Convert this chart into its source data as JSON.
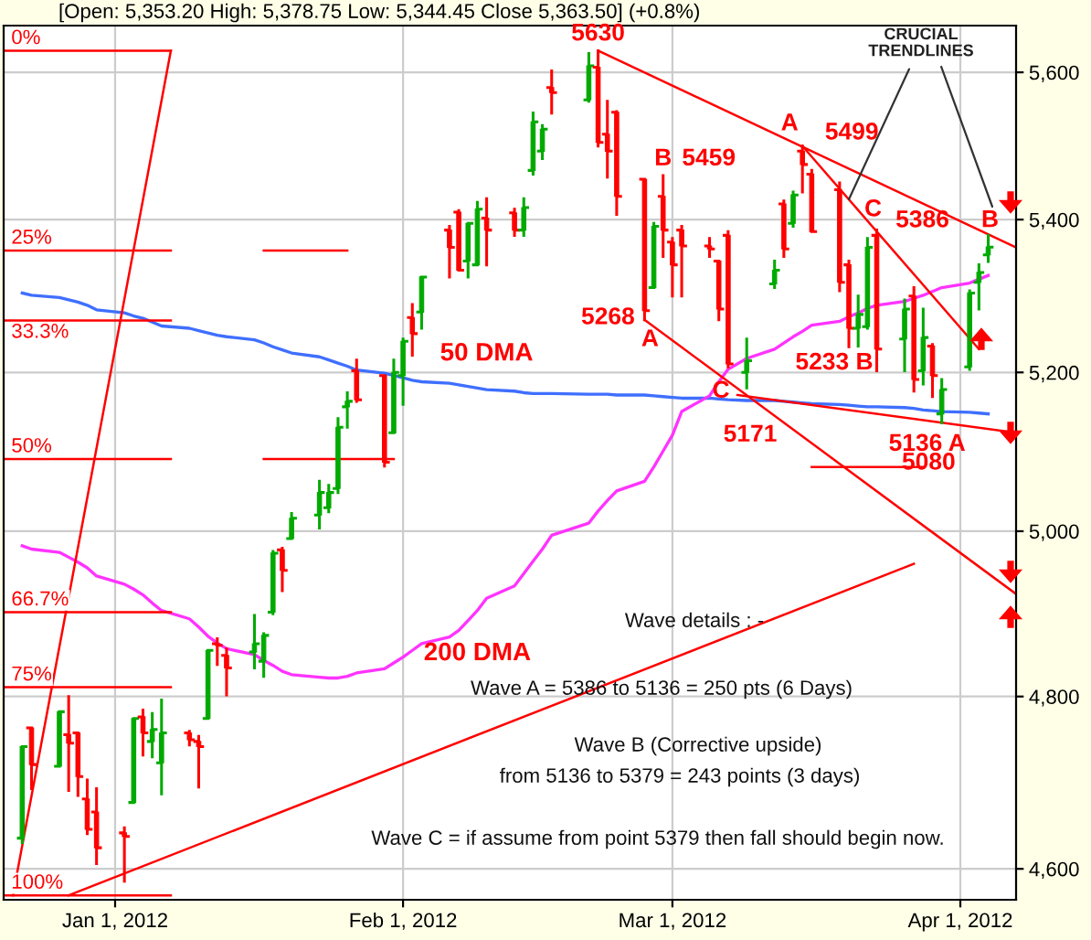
{
  "chart_data": {
    "type": "candlestick",
    "title": "[Open: 5,353.20 High: 5,378.75 Low: 5,344.45 Close 5,363.50] (+0.8%)",
    "x": [
      "2011-12-22",
      "2011-12-23",
      "2011-12-26",
      "2011-12-27",
      "2011-12-28",
      "2011-12-29",
      "2011-12-30",
      "2012-01-02",
      "2012-01-03",
      "2012-01-04",
      "2012-01-05",
      "2012-01-06",
      "2012-01-09",
      "2012-01-10",
      "2012-01-11",
      "2012-01-12",
      "2012-01-13",
      "2012-01-16",
      "2012-01-17",
      "2012-01-18",
      "2012-01-19",
      "2012-01-20",
      "2012-01-23",
      "2012-01-24",
      "2012-01-25",
      "2012-01-26",
      "2012-01-27",
      "2012-01-30",
      "2012-01-31",
      "2012-02-01",
      "2012-02-02",
      "2012-02-03",
      "2012-02-06",
      "2012-02-07",
      "2012-02-08",
      "2012-02-09",
      "2012-02-10",
      "2012-02-13",
      "2012-02-14",
      "2012-02-15",
      "2012-02-16",
      "2012-02-17",
      "2012-02-21",
      "2012-02-22",
      "2012-02-23",
      "2012-02-24",
      "2012-02-27",
      "2012-02-28",
      "2012-02-29",
      "2012-03-01",
      "2012-03-02",
      "2012-03-05",
      "2012-03-06",
      "2012-03-07",
      "2012-03-09",
      "2012-03-12",
      "2012-03-13",
      "2012-03-14",
      "2012-03-15",
      "2012-03-16",
      "2012-03-19",
      "2012-03-20",
      "2012-03-21",
      "2012-03-22",
      "2012-03-23",
      "2012-03-26",
      "2012-03-27",
      "2012-03-28",
      "2012-03-29",
      "2012-03-30",
      "2012-04-02",
      "2012-04-03",
      "2012-04-04"
    ],
    "ohlc": [
      [
        4635,
        4741,
        4630,
        4741
      ],
      [
        4763,
        4763,
        4692,
        4720
      ],
      [
        4718,
        4782,
        4718,
        4782
      ],
      [
        4755,
        4800,
        4690,
        4745
      ],
      [
        4757,
        4757,
        4684,
        4706
      ],
      [
        4680,
        4702,
        4640,
        4645
      ],
      [
        4665,
        4692,
        4606,
        4624
      ],
      [
        4641,
        4647,
        4586,
        4637
      ],
      [
        4676,
        4774,
        4676,
        4774
      ],
      [
        4776,
        4784,
        4731,
        4757
      ],
      [
        4747,
        4780,
        4729,
        4761
      ],
      [
        4722,
        4796,
        4686,
        4757
      ],
      [
        4757,
        4759,
        4743,
        4749
      ],
      [
        4747,
        4753,
        4694,
        4741
      ],
      [
        4774,
        4855,
        4774,
        4855
      ],
      [
        4863,
        4869,
        4838,
        4861
      ],
      [
        4849,
        4857,
        4802,
        4834
      ],
      [
        4853,
        4897,
        4834,
        4863
      ],
      [
        4842,
        4875,
        4824,
        4873
      ],
      [
        4901,
        4975,
        4899,
        4973
      ],
      [
        4977,
        4979,
        4927,
        4952
      ],
      [
        4991,
        5022,
        4991,
        5016
      ],
      [
        5020,
        5062,
        5004,
        5048
      ],
      [
        5029,
        5057,
        5024,
        5048
      ],
      [
        5053,
        5141,
        5048,
        5130
      ],
      [
        5156,
        5174,
        5130,
        5163
      ],
      [
        5202,
        5216,
        5163,
        5165
      ],
      [
        5196,
        5196,
        5081,
        5086
      ],
      [
        5123,
        5216,
        5123,
        5200
      ],
      [
        5196,
        5243,
        5159,
        5240
      ],
      [
        5271,
        5288,
        5222,
        5250
      ],
      [
        5278,
        5324,
        5257,
        5324
      ],
      [
        5386,
        5391,
        5324,
        5363
      ],
      [
        5410,
        5412,
        5333,
        5333
      ],
      [
        5345,
        5395,
        5324,
        5395
      ],
      [
        5340,
        5423,
        5340,
        5414
      ],
      [
        5402,
        5428,
        5340,
        5386
      ],
      [
        5409,
        5414,
        5379,
        5386
      ],
      [
        5386,
        5428,
        5379,
        5416
      ],
      [
        5466,
        5544,
        5461,
        5532
      ],
      [
        5492,
        5527,
        5482,
        5522
      ],
      [
        5579,
        5602,
        5544,
        5572
      ],
      [
        5562,
        5626,
        5560,
        5609
      ],
      [
        5607,
        5630,
        5499,
        5504
      ],
      [
        5515,
        5560,
        5457,
        5492
      ],
      [
        5545,
        5546,
        5407,
        5431
      ],
      [
        5454,
        5454,
        5268,
        5280
      ],
      [
        5310,
        5395,
        5310,
        5391
      ],
      [
        5431,
        5459,
        5351,
        5386
      ],
      [
        5370,
        5375,
        5299,
        5340
      ],
      [
        5386,
        5391,
        5299,
        5365
      ],
      [
        5365,
        5375,
        5351,
        5361
      ],
      [
        5345,
        5345,
        5268,
        5282
      ],
      [
        5379,
        5384,
        5207,
        5211
      ],
      [
        5200,
        5243,
        5180,
        5215
      ],
      [
        5315,
        5345,
        5310,
        5333
      ],
      [
        5421,
        5425,
        5351,
        5361
      ],
      [
        5395,
        5437,
        5391,
        5433
      ],
      [
        5492,
        5499,
        5437,
        5474
      ],
      [
        5461,
        5466,
        5384,
        5384
      ],
      [
        5440,
        5449,
        5306,
        5317
      ],
      [
        5340,
        5345,
        5233,
        5257
      ],
      [
        5257,
        5299,
        5234,
        5275
      ],
      [
        5259,
        5375,
        5257,
        5363
      ],
      [
        5379,
        5386,
        5202,
        5230
      ],
      [
        5243,
        5294,
        5202,
        5282
      ],
      [
        5299,
        5310,
        5176,
        5191
      ],
      [
        5202,
        5282,
        5185,
        5245
      ],
      [
        5234,
        5236,
        5169,
        5196
      ],
      [
        5147,
        5191,
        5136,
        5178
      ],
      [
        5207,
        5306,
        5204,
        5303
      ],
      [
        5317,
        5340,
        5282,
        5330
      ],
      [
        5353.2,
        5378.75,
        5344.45,
        5363.5
      ]
    ],
    "colors": [
      "#00aa00",
      "#ff0000",
      "#00aa00",
      "#ff0000",
      "#ff0000",
      "#ff0000",
      "#ff0000",
      "#ff0000",
      "#00aa00",
      "#ff0000",
      "#00aa00",
      "#00aa00",
      "#ff0000",
      "#ff0000",
      "#00aa00",
      "#ff0000",
      "#ff0000",
      "#00aa00",
      "#00aa00",
      "#00aa00",
      "#ff0000",
      "#00aa00",
      "#00aa00",
      "#00aa00",
      "#00aa00",
      "#00aa00",
      "#ff0000",
      "#ff0000",
      "#00aa00",
      "#00aa00",
      "#ff0000",
      "#00aa00",
      "#ff0000",
      "#ff0000",
      "#00aa00",
      "#00aa00",
      "#ff0000",
      "#ff0000",
      "#00aa00",
      "#00aa00",
      "#00aa00",
      "#ff0000",
      "#00aa00",
      "#ff0000",
      "#ff0000",
      "#ff0000",
      "#ff0000",
      "#00aa00",
      "#ff0000",
      "#ff0000",
      "#ff0000",
      "#ff0000",
      "#ff0000",
      "#ff0000",
      "#00aa00",
      "#00aa00",
      "#ff0000",
      "#00aa00",
      "#ff0000",
      "#ff0000",
      "#ff0000",
      "#ff0000",
      "#00aa00",
      "#00aa00",
      "#ff0000",
      "#00aa00",
      "#ff0000",
      "#00aa00",
      "#ff0000",
      "#00aa00",
      "#00aa00",
      "#00aa00",
      "#00aa00"
    ],
    "series": [
      {
        "name": "50 DMA",
        "type": "line",
        "color": "#3f6fff",
        "values": [
          5303,
          5300,
          5297,
          5294,
          5291,
          5287,
          5281,
          5277,
          5273,
          5270,
          5265,
          5260,
          5257,
          5254,
          5251,
          5248,
          5246,
          5242,
          5238,
          5233,
          5229,
          5225,
          5220,
          5216,
          5212,
          5208,
          5203,
          5199,
          5196,
          5193,
          5190,
          5188,
          5186,
          5184,
          5182,
          5180,
          5178,
          5176,
          5174,
          5173,
          5173,
          5173,
          5172,
          5172,
          5172,
          5171,
          5171,
          5170,
          5169,
          5168,
          5167,
          5167,
          5166,
          5165,
          5164,
          5164,
          5163,
          5162,
          5161,
          5160,
          5159,
          5158,
          5157,
          5156,
          5156,
          5155,
          5154,
          5152,
          5151,
          5150,
          5149,
          5148,
          5147
        ]
      },
      {
        "name": "200 DMA",
        "type": "line",
        "color": "#ff33ff",
        "values": [
          4982,
          4978,
          4974,
          4968,
          4962,
          4955,
          4945,
          4935,
          4929,
          4922,
          4912,
          4903,
          4893,
          4883,
          4872,
          4864,
          4857,
          4850,
          4843,
          4837,
          4830,
          4826,
          4823,
          4822,
          4822,
          4824,
          4828,
          4833,
          4840,
          4847,
          4855,
          4863,
          4871,
          4879,
          4891,
          4903,
          4918,
          4933,
          4948,
          4963,
          4978,
          4995,
          5010,
          5025,
          5038,
          5050,
          5062,
          5080,
          5100,
          5120,
          5150,
          5170,
          5188,
          5204,
          5218,
          5230,
          5238,
          5246,
          5253,
          5261,
          5266,
          5272,
          5277,
          5283,
          5287,
          5292,
          5296,
          5300,
          5305,
          5310,
          5316,
          5321,
          5326
        ]
      },
      {
        "name": "0%",
        "type": "line",
        "color": "#ff0000",
        "x": [
          "2011-12-20",
          "2012-01-07"
        ],
        "values": [
          5630,
          5630
        ]
      },
      {
        "name": "25%",
        "type": "line",
        "color": "#ff0000",
        "x": [
          "2011-12-20",
          "2012-01-07",
          "2012-01-12",
          "2012-01-17",
          "2012-01-26"
        ],
        "values": [
          5359,
          5359,
          null,
          5359,
          5359
        ]
      },
      {
        "name": "33.3%",
        "type": "line",
        "color": "#ff0000",
        "x": [
          "2011-12-20",
          "2012-01-07"
        ],
        "values": [
          5267,
          5267
        ]
      },
      {
        "name": "50%",
        "type": "line",
        "color": "#ff0000",
        "x": [
          "2011-12-20",
          "2012-01-07",
          "2012-01-12",
          "2012-01-17",
          "2012-01-31"
        ],
        "values": [
          5090,
          5090,
          null,
          5090,
          5090
        ]
      },
      {
        "name": "66.7%",
        "type": "line",
        "color": "#ff0000",
        "x": [
          "2011-12-20",
          "2012-01-07"
        ],
        "values": [
          4901,
          4901
        ]
      },
      {
        "name": "75%",
        "type": "line",
        "color": "#ff0000",
        "x": [
          "2011-12-20",
          "2012-01-07"
        ],
        "values": [
          4811,
          4811
        ]
      },
      {
        "name": "100%",
        "type": "line",
        "color": "#ff0000",
        "x": [
          "2011-12-20",
          "2012-01-07"
        ],
        "values": [
          4570,
          4570
        ]
      },
      {
        "type": "line",
        "color": "#ff0000",
        "x": [
          "2011-12-21",
          "2012-01-07"
        ],
        "values": [
          4570,
          5630
        ]
      },
      {
        "type": "line",
        "color": "#ff0000",
        "x": [
          "2011-12-27",
          "2012-03-27"
        ],
        "values": [
          4570,
          4960
        ]
      },
      {
        "type": "line",
        "color": "#ff0000",
        "x": [
          "2012-02-22",
          "2012-04-07"
        ],
        "values": [
          5630,
          5363
        ]
      },
      {
        "type": "line",
        "color": "#ff0000",
        "x": [
          "2012-03-15",
          "2012-04-03"
        ],
        "values": [
          5499,
          5230
        ]
      },
      {
        "type": "line",
        "color": "#ff0000",
        "x": [
          "2012-02-27",
          "2012-04-07"
        ],
        "values": [
          5268,
          4923
        ]
      },
      {
        "type": "line",
        "color": "#ff0000",
        "x": [
          "2012-03-08",
          "2012-04-07"
        ],
        "values": [
          5171,
          5123
        ]
      },
      {
        "type": "line",
        "color": "#ff0000",
        "x": [
          "2012-03-16",
          "2012-03-28"
        ],
        "values": [
          5080,
          5080
        ]
      }
    ],
    "annotations": [
      {
        "text": "5630",
        "x": "2012-02-22",
        "y": 5630
      },
      {
        "text": "A",
        "x": "2012-03-15",
        "y": 5499
      },
      {
        "text": "5499",
        "x": "2012-03-15",
        "y": 5499
      },
      {
        "text": "B",
        "x": "2012-02-29",
        "y": 5459
      },
      {
        "text": "5459",
        "x": "2012-02-29",
        "y": 5459
      },
      {
        "text": "5268",
        "x": "2012-02-27",
        "y": 5268
      },
      {
        "text": "A",
        "x": "2012-02-27",
        "y": 5268
      },
      {
        "text": "C",
        "x": "2012-03-08",
        "y": 5171
      },
      {
        "text": "5171",
        "x": "2012-03-08",
        "y": 5171
      },
      {
        "text": "C",
        "x": "2012-03-23",
        "y": 5386
      },
      {
        "text": "5386",
        "x": "2012-03-23",
        "y": 5386
      },
      {
        "text": "5233 B",
        "x": "2012-03-20",
        "y": 5233
      },
      {
        "text": "5136 A",
        "x": "2012-03-30",
        "y": 5136
      },
      {
        "text": "5080",
        "x": "2012-03-28",
        "y": 5080
      },
      {
        "text": "B",
        "x": "2012-04-04",
        "y": 5379
      },
      {
        "text": "CRUCIAL\nTRENDLINES",
        "x": "2012-03-20",
        "y": 5427
      },
      "Wave details : -",
      "Wave A = 5386 to 5136 = 250 pts (6 Days)",
      "Wave B (Corrective upside)",
      "from 5136 to 5379 = 243 points (3 days)",
      "Wave C = if assume from point 5379 then fall should begin now."
    ],
    "xlim": [
      "2011-12-20",
      "2012-04-07"
    ],
    "xticks": [
      {
        "value": "2012-01-01",
        "label": "Jan 1, 2012"
      },
      {
        "value": "2012-02-01",
        "label": "Feb 1, 2012"
      },
      {
        "value": "2012-03-01",
        "label": "Mar 1, 2012"
      },
      {
        "value": "2012-04-01",
        "label": "Apr 1, 2012"
      }
    ],
    "ylim": [
      4565,
      5665
    ],
    "yticks": [
      {
        "value": 4600,
        "label": "4,600"
      },
      {
        "value": 4800,
        "label": "4,800"
      },
      {
        "value": 5000,
        "label": "5,000"
      },
      {
        "value": 5200,
        "label": "5,200"
      },
      {
        "value": 5400,
        "label": "5,400"
      },
      {
        "value": 5600,
        "label": "5,600"
      }
    ],
    "log": "y",
    "grid": true
  }
}
